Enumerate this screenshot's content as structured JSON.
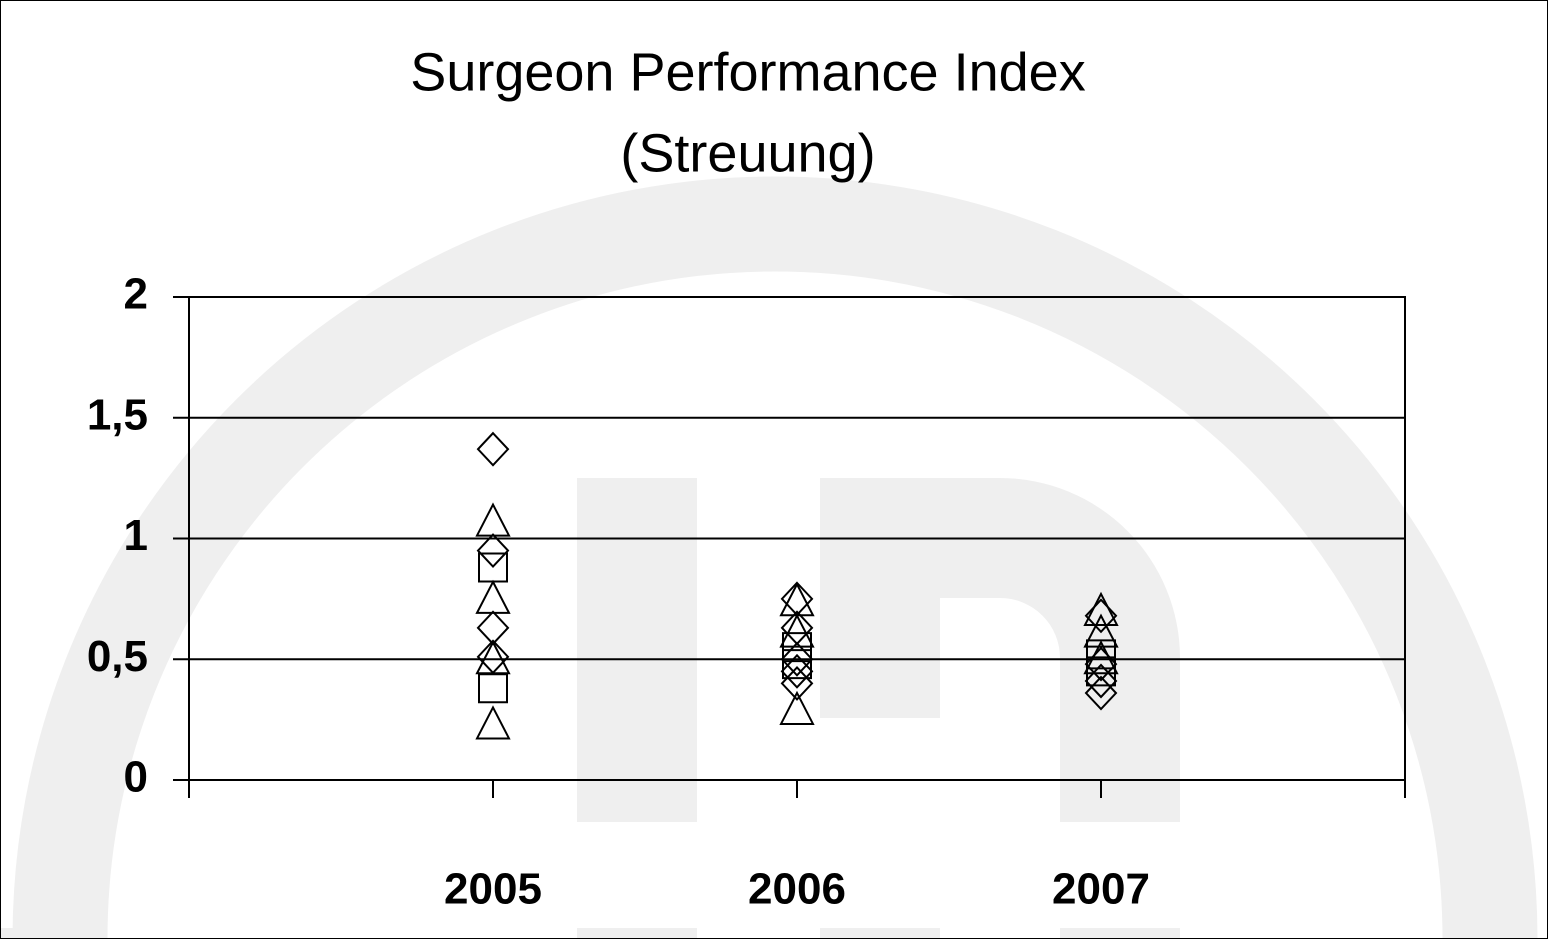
{
  "chart_data": {
    "type": "scatter",
    "title": "Surgeon Performance Index",
    "subtitle": "(Streuung)",
    "categories": [
      "2005",
      "2006",
      "2007"
    ],
    "ylim": [
      0,
      2
    ],
    "yticks": [
      0,
      {
        "value": 0.5,
        "label": "0,5"
      },
      1,
      {
        "value": 1.5,
        "label": "1,5"
      },
      2
    ],
    "grid": true,
    "series": [
      {
        "marker": "diamond",
        "color": "#000000",
        "x": [
          "2005",
          "2005",
          "2005",
          "2005",
          "2006",
          "2006",
          "2006",
          "2006",
          "2006",
          "2007",
          "2007",
          "2007",
          "2007"
        ],
        "values": [
          1.37,
          0.95,
          0.63,
          0.51,
          0.75,
          0.63,
          0.5,
          0.45,
          0.4,
          0.68,
          0.48,
          0.41,
          0.36
        ]
      },
      {
        "marker": "triangle",
        "color": "#000000",
        "x": [
          "2005",
          "2005",
          "2005",
          "2005",
          "2006",
          "2006",
          "2006",
          "2007",
          "2007",
          "2007"
        ],
        "values": [
          1.07,
          0.75,
          0.5,
          0.23,
          0.74,
          0.61,
          0.29,
          0.7,
          0.61,
          0.5
        ]
      },
      {
        "marker": "square",
        "color": "#000000",
        "x": [
          "2005",
          "2005",
          "2006",
          "2006",
          "2007",
          "2007"
        ],
        "values": [
          0.88,
          0.38,
          0.55,
          0.48,
          0.52,
          0.45
        ]
      }
    ]
  }
}
